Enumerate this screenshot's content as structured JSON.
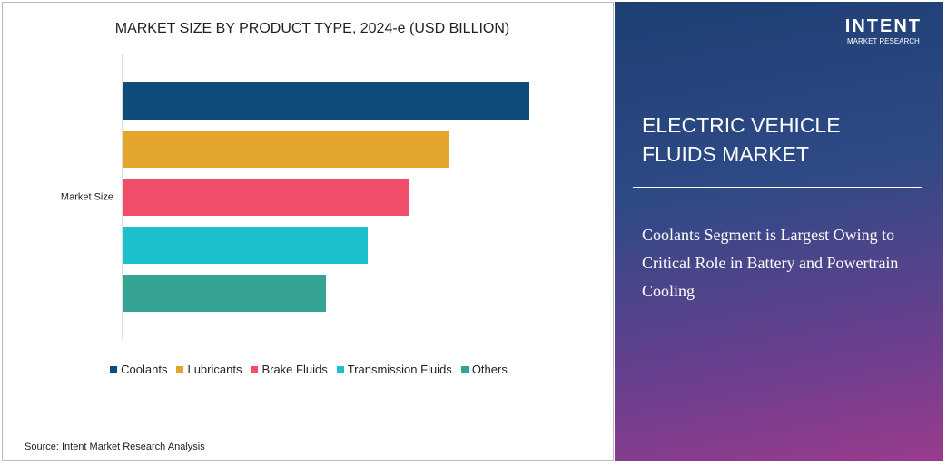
{
  "chart_data": {
    "type": "bar",
    "orientation": "horizontal",
    "title": "MARKET SIZE BY PRODUCT TYPE, 2024-e (USD BILLION)",
    "categories": [
      "Market Size"
    ],
    "series": [
      {
        "name": "Coolants",
        "color": "#0f4c7a",
        "values": [
          4.47
        ]
      },
      {
        "name": "Lubricants",
        "color": "#e3a52c",
        "values": [
          3.58
        ]
      },
      {
        "name": "Brake Fluids",
        "color": "#f04d6a",
        "values": [
          3.14
        ]
      },
      {
        "name": "Transmission Fluids",
        "color": "#1cc0cc",
        "values": [
          2.69
        ]
      },
      {
        "name": "Others",
        "color": "#35a394",
        "values": [
          2.23
        ]
      }
    ],
    "xlim": [
      0,
      4.5
    ],
    "legend": "bottom",
    "source": "Source: Intent Market Research Analysis"
  },
  "panel": {
    "logo": "INTENT",
    "logo_sub": "MARKET RESEARCH",
    "heading": "ELECTRIC VEHICLE FLUIDS MARKET",
    "description": "Coolants Segment is Largest Owing to Critical Role in Battery and Powertrain Cooling"
  }
}
